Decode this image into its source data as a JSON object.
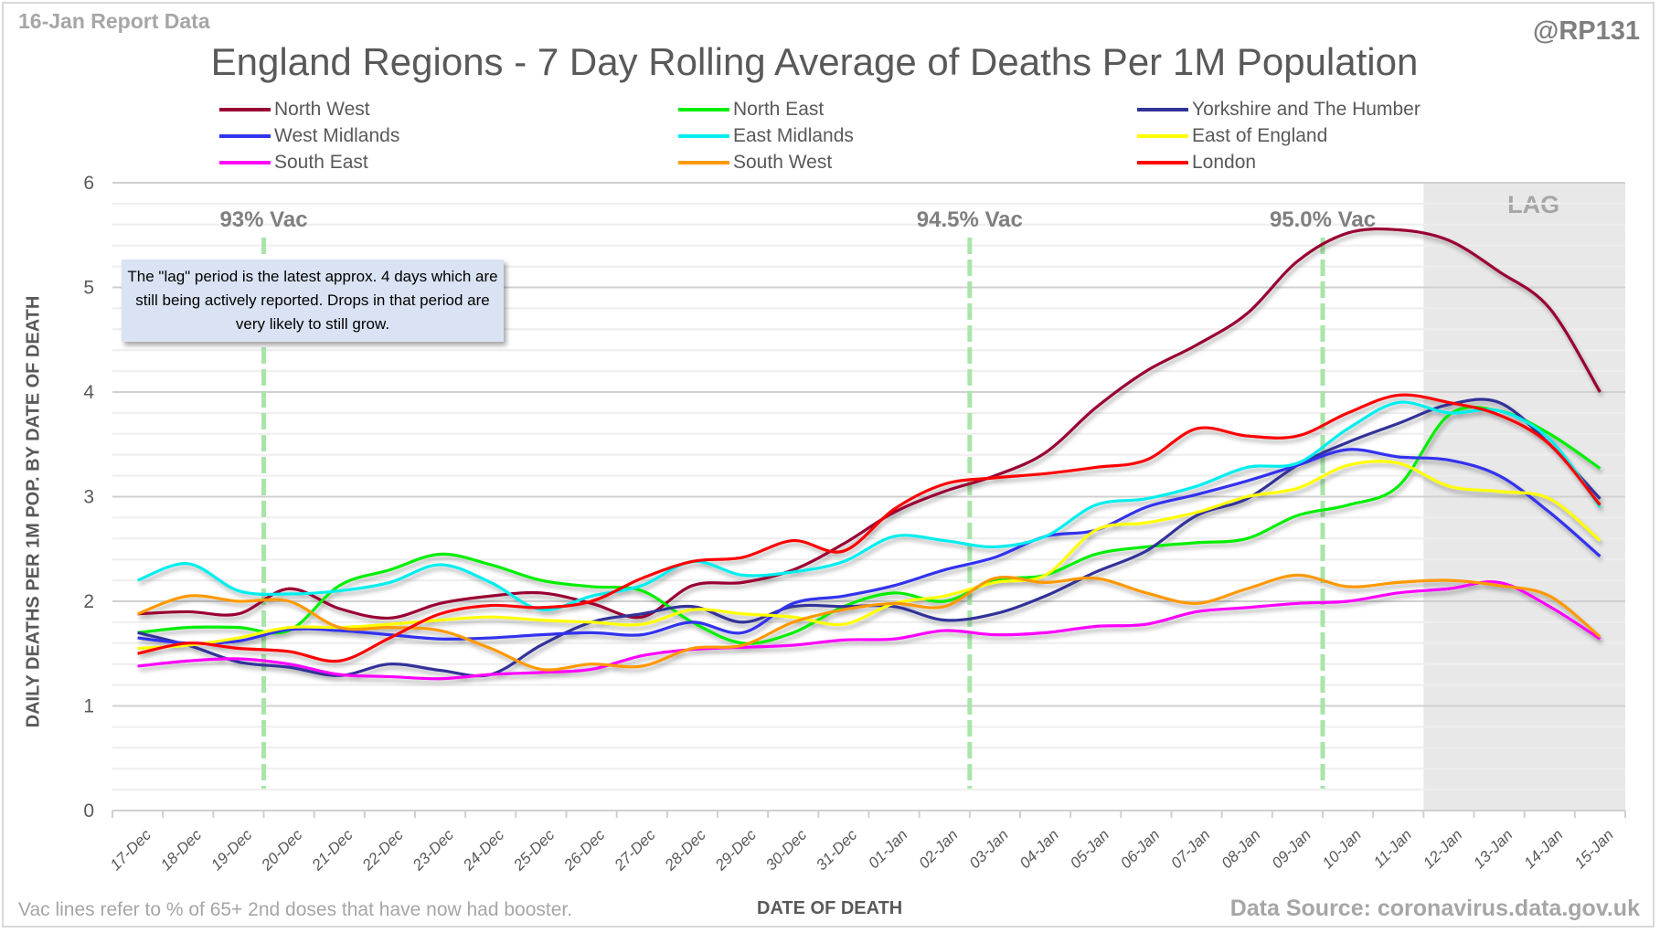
{
  "header": {
    "report_label": "16-Jan Report Data",
    "handle": "@RP131"
  },
  "footer": {
    "footnote": "Vac lines refer to % of 65+ 2nd doses that have now had booster.",
    "source": "Data Source: coronavirus.data.gov.uk"
  },
  "note": {
    "text": "The \"lag\" period is the latest approx. 4 days which are still being actively reported.  Drops in that period are very likely to still grow."
  },
  "chart_data": {
    "type": "line",
    "title": "England Regions - 7 Day Rolling Average of Deaths Per 1M Population",
    "xlabel": "DATE OF DEATH",
    "ylabel": "DAILY DEATHS PER 1M POP. BY DATE OF DEATH",
    "ylim": [
      0,
      6
    ],
    "yticks": [
      0,
      1,
      2,
      3,
      4,
      5,
      6
    ],
    "grid": true,
    "minor_grid_step": 0.2,
    "legend_position": "top",
    "x": [
      "17-Dec",
      "18-Dec",
      "19-Dec",
      "20-Dec",
      "21-Dec",
      "22-Dec",
      "23-Dec",
      "24-Dec",
      "25-Dec",
      "26-Dec",
      "27-Dec",
      "28-Dec",
      "29-Dec",
      "30-Dec",
      "31-Dec",
      "01-Jan",
      "02-Jan",
      "03-Jan",
      "04-Jan",
      "05-Jan",
      "06-Jan",
      "07-Jan",
      "08-Jan",
      "09-Jan",
      "10-Jan",
      "11-Jan",
      "12-Jan",
      "13-Jan",
      "14-Jan",
      "15-Jan"
    ],
    "shaded_region": {
      "label": "LAG",
      "from": "12-Jan",
      "to": "15-Jan",
      "color": "#e8e8e8"
    },
    "vertical_markers": [
      {
        "label": "93% Vac",
        "x": "19-Dec",
        "offset": 0.5,
        "color": "#a9e5a9"
      },
      {
        "label": "94.5% Vac",
        "x": "02-Jan",
        "offset": 0.5,
        "color": "#a9e5a9"
      },
      {
        "label": "95.0% Vac",
        "x": "09-Jan",
        "offset": 0.5,
        "color": "#a9e5a9"
      }
    ],
    "series": [
      {
        "name": "North West",
        "color": "#990033",
        "values": [
          1.88,
          1.9,
          1.88,
          2.12,
          1.93,
          1.84,
          1.98,
          2.05,
          2.08,
          1.98,
          1.85,
          2.15,
          2.18,
          2.3,
          2.55,
          2.85,
          3.05,
          3.2,
          3.42,
          3.85,
          4.2,
          4.45,
          4.75,
          5.25,
          5.52,
          5.55,
          5.45,
          5.15,
          4.8,
          4.0
        ]
      },
      {
        "name": "North East",
        "color": "#00ee00",
        "values": [
          1.7,
          1.75,
          1.75,
          1.72,
          2.15,
          2.3,
          2.45,
          2.35,
          2.2,
          2.14,
          2.1,
          1.8,
          1.6,
          1.7,
          1.95,
          2.08,
          2.0,
          2.2,
          2.25,
          2.45,
          2.52,
          2.56,
          2.6,
          2.82,
          2.92,
          3.1,
          3.78,
          3.82,
          3.6,
          3.27
        ]
      },
      {
        "name": "Yorkshire and The Humber",
        "color": "#333399",
        "values": [
          1.7,
          1.58,
          1.42,
          1.37,
          1.29,
          1.4,
          1.34,
          1.3,
          1.58,
          1.8,
          1.88,
          1.95,
          1.8,
          1.95,
          1.95,
          1.95,
          1.82,
          1.88,
          2.05,
          2.28,
          2.48,
          2.82,
          2.98,
          3.3,
          3.52,
          3.7,
          3.88,
          3.9,
          3.5,
          2.98
        ]
      },
      {
        "name": "West Midlands",
        "color": "#3333ee",
        "values": [
          1.65,
          1.6,
          1.62,
          1.73,
          1.72,
          1.68,
          1.64,
          1.65,
          1.68,
          1.7,
          1.68,
          1.8,
          1.7,
          1.98,
          2.05,
          2.15,
          2.3,
          2.42,
          2.62,
          2.68,
          2.9,
          3.02,
          3.15,
          3.3,
          3.45,
          3.38,
          3.35,
          3.2,
          2.85,
          2.43
        ]
      },
      {
        "name": "East Midlands",
        "color": "#00eeee",
        "values": [
          2.2,
          2.36,
          2.1,
          2.07,
          2.1,
          2.18,
          2.35,
          2.18,
          1.92,
          2.05,
          2.15,
          2.38,
          2.25,
          2.28,
          2.38,
          2.62,
          2.58,
          2.52,
          2.62,
          2.92,
          2.98,
          3.1,
          3.28,
          3.32,
          3.65,
          3.9,
          3.8,
          3.82,
          3.55,
          2.9
        ]
      },
      {
        "name": "East of England",
        "color": "#ffff00",
        "values": [
          1.55,
          1.58,
          1.65,
          1.75,
          1.75,
          1.78,
          1.82,
          1.85,
          1.82,
          1.8,
          1.78,
          1.92,
          1.88,
          1.85,
          1.78,
          1.98,
          2.05,
          2.18,
          2.25,
          2.68,
          2.75,
          2.85,
          3.0,
          3.08,
          3.3,
          3.32,
          3.1,
          3.05,
          2.98,
          2.58
        ]
      },
      {
        "name": "South East",
        "color": "#ff00ff",
        "values": [
          1.38,
          1.43,
          1.45,
          1.4,
          1.3,
          1.28,
          1.26,
          1.3,
          1.32,
          1.35,
          1.48,
          1.54,
          1.56,
          1.58,
          1.63,
          1.64,
          1.72,
          1.68,
          1.7,
          1.76,
          1.78,
          1.9,
          1.94,
          1.98,
          2.0,
          2.08,
          2.12,
          2.18,
          1.95,
          1.64
        ]
      },
      {
        "name": "South West",
        "color": "#ff9900",
        "values": [
          1.88,
          2.05,
          2.0,
          2.0,
          1.75,
          1.75,
          1.72,
          1.55,
          1.35,
          1.4,
          1.38,
          1.55,
          1.58,
          1.8,
          1.92,
          1.98,
          1.95,
          2.22,
          2.18,
          2.22,
          2.08,
          1.98,
          2.12,
          2.25,
          2.14,
          2.18,
          2.2,
          2.15,
          2.05,
          1.66
        ]
      },
      {
        "name": "London",
        "color": "#ff0000",
        "values": [
          1.5,
          1.6,
          1.55,
          1.52,
          1.43,
          1.65,
          1.88,
          1.96,
          1.94,
          2.0,
          2.22,
          2.38,
          2.42,
          2.58,
          2.48,
          2.88,
          3.12,
          3.18,
          3.22,
          3.28,
          3.35,
          3.65,
          3.58,
          3.58,
          3.8,
          3.97,
          3.9,
          3.78,
          3.5,
          2.92
        ]
      }
    ]
  }
}
